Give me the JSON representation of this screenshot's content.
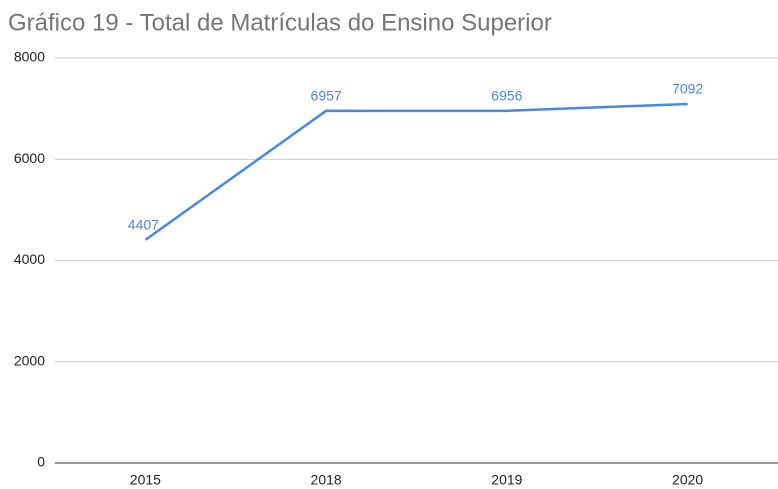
{
  "chart_data": {
    "type": "line",
    "title": "Gráfico 19 - Total de Matrículas do Ensino Superior",
    "categories": [
      "2015",
      "2018",
      "2019",
      "2020"
    ],
    "values": [
      4407,
      6957,
      6956,
      7092
    ],
    "color": "#4a86e8",
    "ylim": [
      0,
      8000
    ],
    "yticks": [
      0,
      2000,
      4000,
      6000,
      8000
    ],
    "grid": true,
    "data_labels": true
  }
}
